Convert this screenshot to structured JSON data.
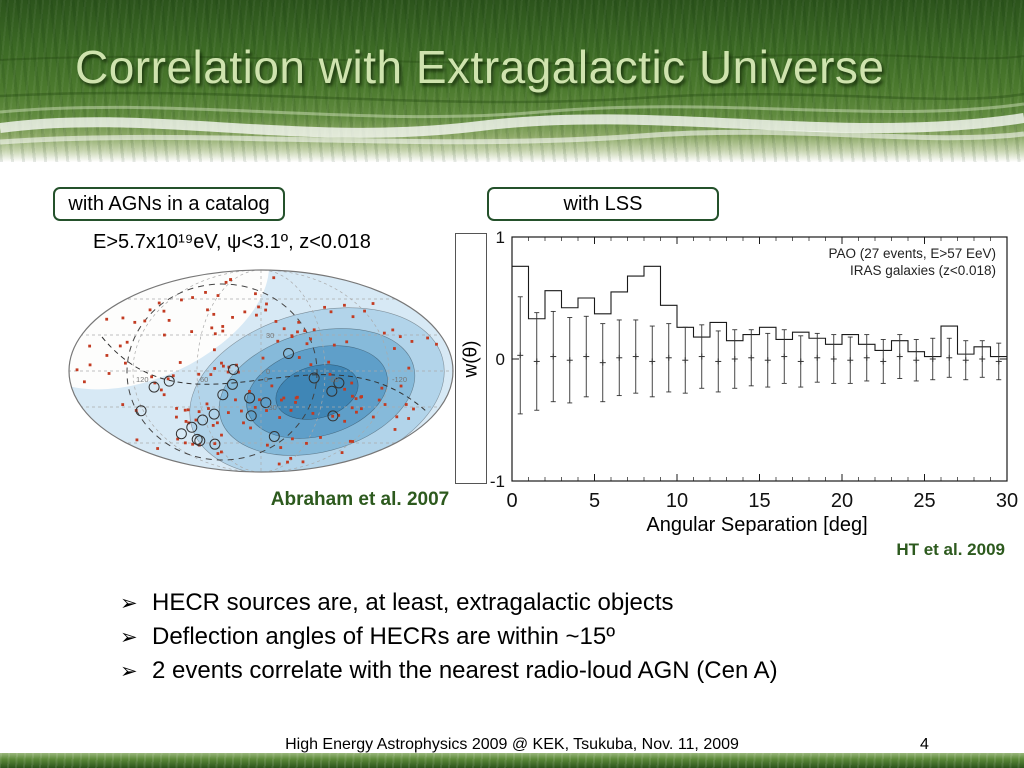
{
  "slide": {
    "title": "Correlation with Extragalactic Universe",
    "footer": "High Energy Astrophysics 2009 @ KEK, Tsukuba, Nov. 11, 2009",
    "page_number": "4"
  },
  "left_panel": {
    "box_label": "with AGNs in a catalog",
    "criteria": "E>5.7x10¹⁹eV, ψ<3.1º, z<0.018",
    "caption": "Abraham et al. 2007"
  },
  "right_panel": {
    "box_label": "with LSS",
    "caption": "HT et al. 2009"
  },
  "bullets": {
    "marker": "➢",
    "items": [
      "HECR sources are, at least, extragalactic objects",
      "Deflection angles of HECRs are within ~15º",
      "2 events correlate with the nearest radio-loud AGN (Cen A)"
    ]
  },
  "sky_map": {
    "dot_color": "#c23b22",
    "event_circle_color": "#333333",
    "contour_colors": [
      "#d7e9f5",
      "#b2d4ea",
      "#86bada",
      "#5f9fc9",
      "#3f86b6"
    ],
    "lon_labels": [
      "120",
      "60",
      "0",
      "-60",
      "-120"
    ],
    "lat_labels": [
      "30",
      "0",
      "-30"
    ]
  },
  "chart_data": {
    "type": "line",
    "title": "",
    "xlabel": "Angular Separation [deg]",
    "ylabel": "w(θ)",
    "xlim": [
      0,
      30
    ],
    "ylim": [
      -1,
      1
    ],
    "x_ticks": [
      0,
      5,
      10,
      15,
      20,
      25,
      30
    ],
    "y_ticks": [
      1,
      0,
      -1
    ],
    "legend": [
      "PAO (27 events, E>57 EeV)",
      "IRAS galaxies (z<0.018)"
    ],
    "series": [
      {
        "name": "PAO (27 events, E>57 EeV)",
        "style": "histogram-step",
        "bin_width": 1,
        "values": [
          0.76,
          0.33,
          0.56,
          0.42,
          0.5,
          0.37,
          0.55,
          0.68,
          0.76,
          0.44,
          0.26,
          0.18,
          0.3,
          0.15,
          0.2,
          0.26,
          0.16,
          0.22,
          0.17,
          0.12,
          0.2,
          0.12,
          0.07,
          0.15,
          0.06,
          0.02,
          0.27,
          0.04,
          0.1,
          0.02
        ]
      },
      {
        "name": "IRAS galaxies (z<0.018)",
        "style": "errorbar",
        "x": [
          0.5,
          1.5,
          2.5,
          3.5,
          4.5,
          5.5,
          6.5,
          7.5,
          8.5,
          9.5,
          10.5,
          11.5,
          12.5,
          13.5,
          14.5,
          15.5,
          16.5,
          17.5,
          18.5,
          19.5,
          20.5,
          21.5,
          22.5,
          23.5,
          24.5,
          25.5,
          26.5,
          27.5,
          28.5,
          29.5
        ],
        "y": [
          0.03,
          -0.02,
          0.02,
          -0.01,
          0.02,
          -0.03,
          0.01,
          0.02,
          -0.02,
          0.01,
          -0.01,
          0.02,
          -0.02,
          0.0,
          0.01,
          -0.01,
          0.02,
          -0.02,
          0.01,
          0.0,
          -0.01,
          0.01,
          -0.02,
          0.02,
          -0.01,
          0.0,
          0.01,
          -0.01,
          0.0,
          -0.02
        ],
        "err": [
          0.48,
          0.4,
          0.37,
          0.35,
          0.33,
          0.32,
          0.31,
          0.3,
          0.29,
          0.28,
          0.27,
          0.26,
          0.25,
          0.24,
          0.23,
          0.22,
          0.22,
          0.21,
          0.2,
          0.2,
          0.19,
          0.19,
          0.18,
          0.18,
          0.17,
          0.17,
          0.16,
          0.16,
          0.15,
          0.15
        ]
      }
    ]
  }
}
